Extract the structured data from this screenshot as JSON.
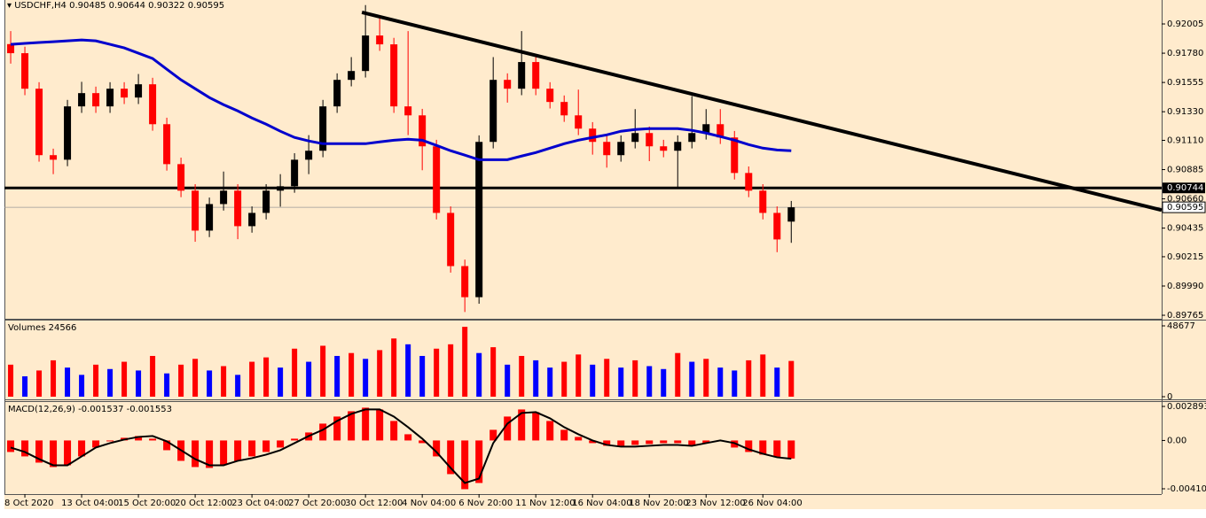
{
  "chart_data": {
    "type": "candlestick",
    "title": "USDCHF,H4",
    "categories": [
      null,
      "8 Oct 2020",
      null,
      null,
      null,
      "13 Oct 04:00",
      null,
      null,
      null,
      "15 Oct 20:00",
      null,
      null,
      null,
      "20 Oct 12:00",
      null,
      null,
      null,
      "23 Oct 04:00",
      null,
      null,
      null,
      "27 Oct 20:00",
      null,
      null,
      null,
      "30 Oct 12:00",
      null,
      null,
      null,
      "4 Nov 04:00",
      null,
      null,
      null,
      "6 Nov 20:00",
      null,
      null,
      null,
      "11 Nov 12:00",
      null,
      null,
      null,
      "16 Nov 04:00",
      null,
      null,
      null,
      "18 Nov 20:00",
      null,
      null,
      null,
      "23 Nov 12:00",
      null,
      null,
      null,
      "26 Nov 04:00",
      null,
      null
    ],
    "open": [
      0.9185,
      0.9178,
      0.91507,
      0.90996,
      0.90961,
      0.91371,
      0.91473,
      0.91371,
      0.91507,
      0.91439,
      0.91541,
      0.91234,
      0.90927,
      0.90723,
      0.90416,
      0.9062,
      0.90723,
      0.9045,
      0.90552,
      0.90723,
      0.90757,
      0.90961,
      0.9103,
      0.91371,
      0.91575,
      0.91643,
      0.91916,
      0.91848,
      0.91371,
      0.91302,
      0.91064,
      0.90552,
      0.90143,
      0.89904,
      0.91098,
      0.91575,
      0.91507,
      0.91712,
      0.91507,
      0.91405,
      0.91302,
      0.912,
      0.91098,
      0.90996,
      0.91098,
      0.91166,
      0.91064,
      0.9103,
      0.91098,
      0.91166,
      0.91234,
      0.91132,
      0.90859,
      0.90723,
      0.90552,
      0.90485
    ],
    "high": [
      0.9195,
      0.9183,
      0.91557,
      0.91046,
      0.91421,
      0.9156,
      0.91523,
      0.91557,
      0.91557,
      0.9162,
      0.91591,
      0.91284,
      0.90977,
      0.90773,
      0.9067,
      0.9087,
      0.90773,
      0.90602,
      0.90773,
      0.9085,
      0.91011,
      0.9115,
      0.91421,
      0.91625,
      0.9175,
      0.9215,
      0.9205,
      0.91898,
      0.9195,
      0.91352,
      0.91114,
      0.90602,
      0.90193,
      0.91148,
      0.9175,
      0.91625,
      0.9195,
      0.91762,
      0.91557,
      0.91455,
      0.915,
      0.9125,
      0.91148,
      0.91148,
      0.9135,
      0.91216,
      0.91114,
      0.91148,
      0.9145,
      0.9135,
      0.9135,
      0.91182,
      0.90909,
      0.90773,
      0.90602,
      0.90644
    ],
    "low": [
      0.917,
      0.91457,
      0.90946,
      0.9085,
      0.90911,
      0.91321,
      0.91321,
      0.91321,
      0.91389,
      0.91389,
      0.91184,
      0.90877,
      0.90673,
      0.9033,
      0.90366,
      0.9057,
      0.9035,
      0.904,
      0.90502,
      0.906,
      0.90707,
      0.9085,
      0.9098,
      0.91321,
      0.91525,
      0.91593,
      0.91798,
      0.91321,
      0.9115,
      0.9088,
      0.90502,
      0.90093,
      0.8979,
      0.89854,
      0.91048,
      0.914,
      0.91457,
      0.91457,
      0.91355,
      0.91252,
      0.9115,
      0.91,
      0.909,
      0.90946,
      0.91048,
      0.9095,
      0.9098,
      0.90744,
      0.91048,
      0.91116,
      0.91082,
      0.90809,
      0.90673,
      0.90502,
      0.9025,
      0.90322
    ],
    "close": [
      0.9178,
      0.91507,
      0.90996,
      0.90961,
      0.91371,
      0.91473,
      0.91371,
      0.91507,
      0.91439,
      0.91541,
      0.91234,
      0.90927,
      0.90723,
      0.90416,
      0.9062,
      0.90723,
      0.9045,
      0.90552,
      0.90723,
      0.90757,
      0.90961,
      0.9103,
      0.91371,
      0.91575,
      0.91643,
      0.91916,
      0.91848,
      0.91371,
      0.91302,
      0.91064,
      0.90552,
      0.90143,
      0.89904,
      0.91098,
      0.91575,
      0.91507,
      0.91712,
      0.91507,
      0.91405,
      0.91302,
      0.912,
      0.91098,
      0.90996,
      0.91098,
      0.91166,
      0.91064,
      0.9103,
      0.91098,
      0.91166,
      0.91234,
      0.91132,
      0.90859,
      0.90723,
      0.90552,
      0.90348,
      0.90595
    ],
    "up_color": "#000000",
    "down_color": "#ff0000",
    "ma": {
      "color": "#0000cd",
      "values": [
        0.91848,
        0.91855,
        0.91862,
        0.91868,
        0.91875,
        0.91882,
        0.91875,
        0.91848,
        0.91821,
        0.9178,
        0.91739,
        0.91657,
        0.91575,
        0.91507,
        0.91439,
        0.91384,
        0.91336,
        0.91282,
        0.91234,
        0.9118,
        0.91132,
        0.91105,
        0.91084,
        0.91084,
        0.91084,
        0.91084,
        0.91098,
        0.91111,
        0.91118,
        0.91111,
        0.91071,
        0.9103,
        0.90996,
        0.90961,
        0.90961,
        0.90961,
        0.90989,
        0.91016,
        0.9105,
        0.91084,
        0.91111,
        0.91132,
        0.91152,
        0.9118,
        0.91193,
        0.912,
        0.912,
        0.912,
        0.91187,
        0.91166,
        0.91139,
        0.91111,
        0.91077,
        0.9105,
        0.91036,
        0.9103
      ]
    },
    "trendline": {
      "x": [
        24.75,
        81.1
      ],
      "y": [
        0.92094,
        0.90573
      ],
      "color": "#000000"
    },
    "hline": 0.90744,
    "price_line": 0.90595,
    "xlim": [
      -0.44,
      81.1
    ],
    "ylim": [
      0.89738,
      0.92189
    ],
    "yticks": [
      0.92005,
      {
        "value": 0.9178,
        "label": "0.91780"
      },
      0.91555,
      {
        "value": 0.9133,
        "label": "0.91330"
      },
      {
        "value": 0.9111,
        "label": "0.91110"
      },
      0.90885,
      {
        "value": 0.9066,
        "label": "0.90660"
      },
      0.90435,
      0.90215,
      {
        "value": 0.8999,
        "label": "0.89990"
      },
      0.89765
    ],
    "volume": {
      "title": "Volumes",
      "up_color": "#ff0000",
      "down_color": "#0000ff",
      "values": [
        22000,
        14000,
        18000,
        25000,
        20000,
        15000,
        22000,
        19000,
        24000,
        18000,
        28000,
        16000,
        22000,
        26000,
        18000,
        21000,
        15000,
        24000,
        27000,
        20000,
        33000,
        24000,
        35000,
        28000,
        30000,
        26000,
        32000,
        40000,
        36000,
        28000,
        33000,
        36000,
        48000,
        30000,
        34000,
        22000,
        28000,
        25000,
        20000,
        24000,
        29000,
        22000,
        26000,
        20000,
        25000,
        21000,
        19000,
        30000,
        24000,
        26000,
        20000,
        18000,
        25000,
        29000,
        20000,
        24566
      ],
      "ylim": [
        0,
        52328
      ],
      "yticks": [
        48677,
        0
      ]
    },
    "macd": {
      "title": "MACD(12,26,9)",
      "hist_color": "#ff0000",
      "signal_color": "#000000",
      "histogram": [
        -0.000979,
        -0.001355,
        -0.001883,
        -0.002259,
        -0.002108,
        -0.001355,
        -0.000602,
        -7.5e-05,
        0.000226,
        0.000377,
        0.000151,
        -0.000828,
        -0.001732,
        -0.002259,
        -0.002334,
        -0.002108,
        -0.001732,
        -0.001355,
        -0.000979,
        -0.000602,
        0.000151,
        0.000678,
        0.001431,
        0.002033,
        0.002485,
        0.002786,
        0.002636,
        0.001657,
        0.000527,
        -0.000226,
        -0.001355,
        -0.002861,
        -0.004142,
        -0.003614,
        0.000904,
        0.002033,
        0.002636,
        0.00241,
        0.001657,
        0.000904,
        0.000301,
        -0.000226,
        -0.000452,
        -0.000452,
        -0.000377,
        -0.000301,
        -0.000226,
        -0.000226,
        -0.000377,
        -0.000226,
        -7.5e-05,
        -0.000602,
        -0.000979,
        -0.001205,
        -0.001431,
        -0.001537
      ],
      "signal": [
        -0.000602,
        -0.000979,
        -0.001581,
        -0.002108,
        -0.002108,
        -0.001355,
        -0.000602,
        -0.000226,
        7.5e-05,
        0.000301,
        0.000377,
        -7.5e-05,
        -0.000828,
        -0.001581,
        -0.002108,
        -0.002108,
        -0.001732,
        -0.001506,
        -0.001205,
        -0.000828,
        -0.000226,
        0.000377,
        0.000904,
        0.001657,
        0.002259,
        0.002636,
        0.002636,
        0.002033,
        0.00113,
        0.000151,
        -0.000979,
        -0.002334,
        -0.003614,
        -0.003238,
        -0.000226,
        0.001431,
        0.002334,
        0.00241,
        0.001883,
        0.00113,
        0.000527,
        0,
        -0.000377,
        -0.000527,
        -0.000527,
        -0.000452,
        -0.000377,
        -0.000377,
        -0.000452,
        -0.000226,
        0,
        -0.000226,
        -0.000753,
        -0.00113,
        -0.001431,
        -0.001553
      ],
      "ylim": [
        -0.004559,
        0.003194
      ],
      "yticks": [
        0.002893,
        {
          "value": 0,
          "label": "0.00"
        },
        -0.004107
      ]
    }
  }
}
